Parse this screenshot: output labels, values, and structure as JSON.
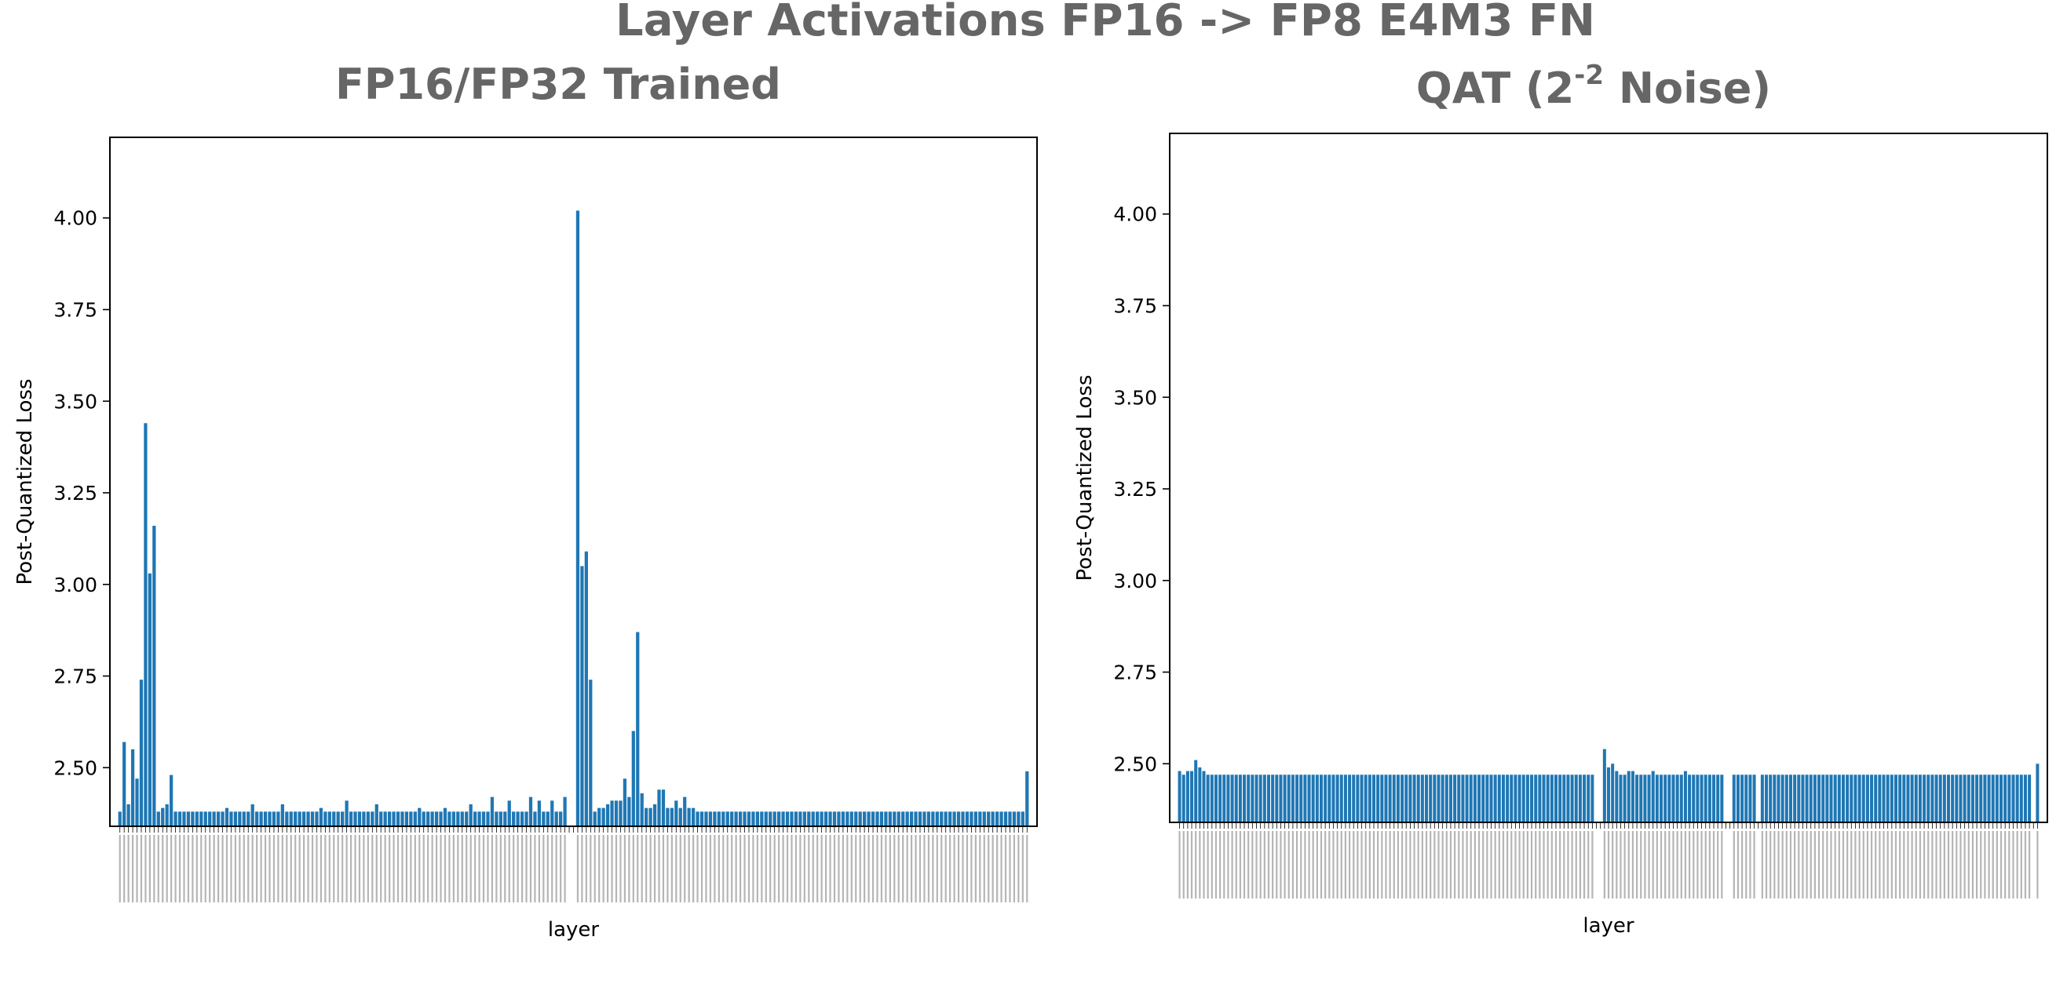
{
  "figure": {
    "title": "Layer Activations FP16 -> FP8 E4M3 FN",
    "bar_color": "#1f77b4",
    "title_color": "#666666"
  },
  "chart_data": [
    {
      "type": "bar",
      "title": "FP16/FP32 Trained",
      "xlabel": "layer",
      "ylabel": "Post-Quantized Loss",
      "ylim": [
        2.34,
        4.22
      ],
      "yticks": [
        2.5,
        2.75,
        3.0,
        3.25,
        3.5,
        3.75,
        4.0
      ],
      "ytick_labels": [
        "2.50",
        "2.75",
        "3.00",
        "3.25",
        "3.50",
        "3.75",
        "4.00"
      ],
      "grid": false,
      "num_layers": 213,
      "values_breakdown": "baseline 2.38 for all layers except the listed exceptions",
      "baseline": 2.38,
      "exceptions": [
        {
          "index": 1,
          "value": 2.57
        },
        {
          "index": 2,
          "value": 2.4
        },
        {
          "index": 3,
          "value": 2.55
        },
        {
          "index": 4,
          "value": 2.47
        },
        {
          "index": 5,
          "value": 2.74
        },
        {
          "index": 6,
          "value": 3.44
        },
        {
          "index": 7,
          "value": 3.03
        },
        {
          "index": 8,
          "value": 3.16
        },
        {
          "index": 9,
          "value": 2.38
        },
        {
          "index": 10,
          "value": 2.39
        },
        {
          "index": 11,
          "value": 2.4
        },
        {
          "index": 12,
          "value": 2.48
        },
        {
          "index": 25,
          "value": 2.39
        },
        {
          "index": 31,
          "value": 2.4
        },
        {
          "index": 38,
          "value": 2.4
        },
        {
          "index": 47,
          "value": 2.39
        },
        {
          "index": 53,
          "value": 2.41
        },
        {
          "index": 60,
          "value": 2.4
        },
        {
          "index": 70,
          "value": 2.39
        },
        {
          "index": 76,
          "value": 2.39
        },
        {
          "index": 82,
          "value": 2.4
        },
        {
          "index": 87,
          "value": 2.42
        },
        {
          "index": 91,
          "value": 2.41
        },
        {
          "index": 96,
          "value": 2.42
        },
        {
          "index": 98,
          "value": 2.41
        },
        {
          "index": 101,
          "value": 2.41
        },
        {
          "index": 104,
          "value": 2.42
        },
        {
          "index": 107,
          "value": 4.02
        },
        {
          "index": 108,
          "value": 3.05
        },
        {
          "index": 109,
          "value": 3.09
        },
        {
          "index": 110,
          "value": 2.74
        },
        {
          "index": 111,
          "value": 2.38
        },
        {
          "index": 112,
          "value": 2.39
        },
        {
          "index": 113,
          "value": 2.39
        },
        {
          "index": 114,
          "value": 2.4
        },
        {
          "index": 115,
          "value": 2.41
        },
        {
          "index": 116,
          "value": 2.41
        },
        {
          "index": 117,
          "value": 2.41
        },
        {
          "index": 118,
          "value": 2.47
        },
        {
          "index": 119,
          "value": 2.42
        },
        {
          "index": 120,
          "value": 2.6
        },
        {
          "index": 121,
          "value": 2.87
        },
        {
          "index": 122,
          "value": 2.43
        },
        {
          "index": 123,
          "value": 2.39
        },
        {
          "index": 124,
          "value": 2.39
        },
        {
          "index": 125,
          "value": 2.4
        },
        {
          "index": 126,
          "value": 2.44
        },
        {
          "index": 127,
          "value": 2.44
        },
        {
          "index": 128,
          "value": 2.39
        },
        {
          "index": 129,
          "value": 2.39
        },
        {
          "index": 130,
          "value": 2.41
        },
        {
          "index": 131,
          "value": 2.39
        },
        {
          "index": 132,
          "value": 2.42
        },
        {
          "index": 133,
          "value": 2.39
        },
        {
          "index": 134,
          "value": 2.39
        },
        {
          "index": 212,
          "value": 2.49
        }
      ],
      "missing": [
        105,
        106
      ]
    },
    {
      "type": "bar",
      "title_base": "QAT (2",
      "title_sup": "-2",
      "title_rest": " Noise)",
      "xlabel": "layer",
      "ylabel": "Post-Quantized Loss",
      "ylim": [
        2.34,
        4.22
      ],
      "yticks": [
        2.5,
        2.75,
        3.0,
        3.25,
        3.5,
        3.75,
        4.0
      ],
      "ytick_labels": [
        "2.50",
        "2.75",
        "3.00",
        "3.25",
        "3.50",
        "3.75",
        "4.00"
      ],
      "grid": false,
      "num_layers": 213,
      "values_breakdown": "baseline 2.47 for all layers except the listed exceptions",
      "baseline": 2.47,
      "exceptions": [
        {
          "index": 0,
          "value": 2.48
        },
        {
          "index": 1,
          "value": 2.47
        },
        {
          "index": 2,
          "value": 2.48
        },
        {
          "index": 3,
          "value": 2.48
        },
        {
          "index": 4,
          "value": 2.51
        },
        {
          "index": 5,
          "value": 2.49
        },
        {
          "index": 6,
          "value": 2.48
        },
        {
          "index": 105,
          "value": 2.54
        },
        {
          "index": 106,
          "value": 2.49
        },
        {
          "index": 107,
          "value": 2.5
        },
        {
          "index": 108,
          "value": 2.48
        },
        {
          "index": 111,
          "value": 2.48
        },
        {
          "index": 112,
          "value": 2.48
        },
        {
          "index": 117,
          "value": 2.48
        },
        {
          "index": 125,
          "value": 2.48
        },
        {
          "index": 212,
          "value": 2.5
        }
      ],
      "missing": [
        103,
        104,
        135,
        136,
        143,
        211
      ]
    }
  ]
}
